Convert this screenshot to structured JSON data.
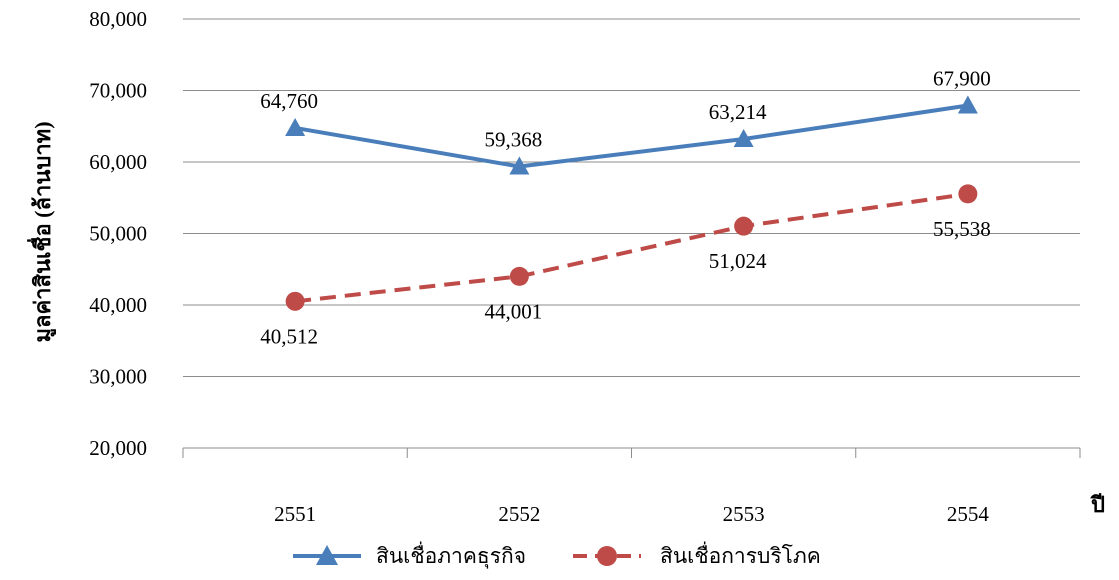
{
  "chart_data": {
    "type": "line",
    "categories": [
      "2551",
      "2552",
      "2553",
      "2554"
    ],
    "series": [
      {
        "name": "สินเชื่อภาคธุรกิจ",
        "values": [
          64760,
          59368,
          63214,
          67900
        ],
        "labels": [
          "64,760",
          "59,368",
          "63,214",
          "67,900"
        ],
        "color": "#4a7ebb",
        "dash": "solid",
        "marker": "triangle"
      },
      {
        "name": "สินเชื่อการบริโภค",
        "values": [
          40512,
          44001,
          51024,
          55538
        ],
        "labels": [
          "40,512",
          "44,001",
          "51,024",
          "55,538"
        ],
        "color": "#be4b48",
        "dash": "dashed",
        "marker": "circle"
      }
    ],
    "ylim": [
      20000,
      80000
    ],
    "yticks": [
      20000,
      30000,
      40000,
      50000,
      60000,
      70000,
      80000
    ],
    "ytick_labels": [
      "20,000",
      "30,000",
      "40,000",
      "50,000",
      "60,000",
      "70,000",
      "80,000"
    ],
    "ylabel": "มูลค่าสินเชื่อ (ล้านบาท)",
    "xlabel": "ปี",
    "grid": true,
    "legend_position": "bottom"
  }
}
